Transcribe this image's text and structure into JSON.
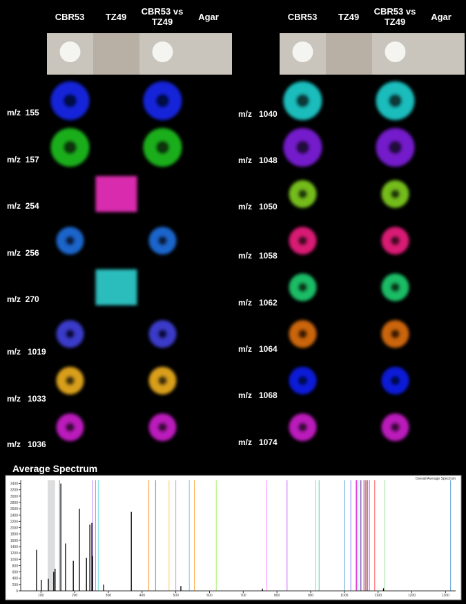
{
  "left_panel": {
    "headers": [
      "CBR53",
      "TZ49",
      "CBR53 vs TZ49",
      "Agar"
    ],
    "rows": [
      {
        "label": "m/z  155",
        "color": "#1a2bff"
      },
      {
        "label": "m/z  157",
        "color": "#22cc22"
      },
      {
        "label": "m/z  254",
        "color": "#ff33cc"
      },
      {
        "label": "m/z  256",
        "color": "#2277ee"
      },
      {
        "label": "m/z  270",
        "color": "#33dddd"
      },
      {
        "label": "m/z   1019",
        "color": "#4444ee"
      },
      {
        "label": "m/z   1033",
        "color": "#ffbb22"
      },
      {
        "label": "m/z   1036",
        "color": "#dd22dd"
      }
    ]
  },
  "right_panel": {
    "headers": [
      "CBR53",
      "TZ49",
      "CBR53 vs TZ49",
      "Agar"
    ],
    "rows": [
      {
        "label": "m/z   1040",
        "color": "#22dddd"
      },
      {
        "label": "m/z   1048",
        "color": "#8822ee"
      },
      {
        "label": "m/z   1050",
        "color": "#88dd22"
      },
      {
        "label": "m/z   1058",
        "color": "#ff2288"
      },
      {
        "label": "m/z   1062",
        "color": "#22dd77"
      },
      {
        "label": "m/z   1064",
        "color": "#ee7711"
      },
      {
        "label": "m/z   1068",
        "color": "#1122ff"
      },
      {
        "label": "m/z   1074",
        "color": "#dd22dd"
      }
    ]
  },
  "chart_data": {
    "type": "spectrum",
    "title": "Average Spectrum",
    "legend": "Overall Average Spectrum",
    "color": "#000000",
    "x": [
      87,
      101,
      122,
      138,
      142,
      159,
      173,
      196,
      214,
      235,
      245,
      251,
      253,
      286,
      368,
      515,
      757,
      1116
    ],
    "values": [
      1300,
      350,
      380,
      600,
      700,
      3400,
      1500,
      950,
      2600,
      1050,
      2100,
      2150,
      1100,
      200,
      2500,
      150,
      70,
      80
    ],
    "highlights": [
      {
        "x": 155,
        "color": "#5a9bd5"
      },
      {
        "x": 254,
        "color": "#c080ff"
      },
      {
        "x": 262,
        "color": "#ff66cc"
      },
      {
        "x": 270,
        "color": "#66dddd"
      },
      {
        "x": 420,
        "color": "#ff9933"
      },
      {
        "x": 440,
        "color": "#5a9bd5"
      },
      {
        "x": 480,
        "color": "#ffcc66"
      },
      {
        "x": 500,
        "color": "#cc99ff"
      },
      {
        "x": 540,
        "color": "#66ccff"
      },
      {
        "x": 555,
        "color": "#ffaa44"
      },
      {
        "x": 620,
        "color": "#aaee66"
      },
      {
        "x": 770,
        "color": "#ff88ff"
      },
      {
        "x": 830,
        "color": "#cc66ff"
      },
      {
        "x": 915,
        "color": "#66dddd"
      },
      {
        "x": 925,
        "color": "#66cc99"
      },
      {
        "x": 1000,
        "color": "#5a9bd5"
      },
      {
        "x": 1019,
        "color": "#8888ff"
      },
      {
        "x": 1033,
        "color": "#ffbb22"
      },
      {
        "x": 1036,
        "color": "#dd22dd"
      },
      {
        "x": 1040,
        "color": "#22dddd"
      },
      {
        "x": 1048,
        "color": "#8822ee"
      },
      {
        "x": 1050,
        "color": "#88dd22"
      },
      {
        "x": 1058,
        "color": "#ff2288"
      },
      {
        "x": 1062,
        "color": "#22dd77"
      },
      {
        "x": 1064,
        "color": "#ee7711"
      },
      {
        "x": 1068,
        "color": "#1122ff"
      },
      {
        "x": 1074,
        "color": "#dd22dd"
      },
      {
        "x": 1090,
        "color": "#ff5555"
      },
      {
        "x": 1120,
        "color": "#99dd99"
      },
      {
        "x": 1315,
        "color": "#5a9bd5"
      }
    ],
    "xlim": [
      40,
      1330
    ],
    "xticks": [
      100,
      200,
      300,
      400,
      500,
      600,
      700,
      800,
      900,
      1000,
      1100,
      1200,
      1300
    ],
    "ylim": [
      0,
      3500
    ],
    "yticks": [
      0,
      200,
      400,
      600,
      800,
      1000,
      1200,
      1400,
      1600,
      1800,
      2000,
      2200,
      2400,
      2600,
      2800,
      3000,
      3200,
      3400
    ]
  }
}
